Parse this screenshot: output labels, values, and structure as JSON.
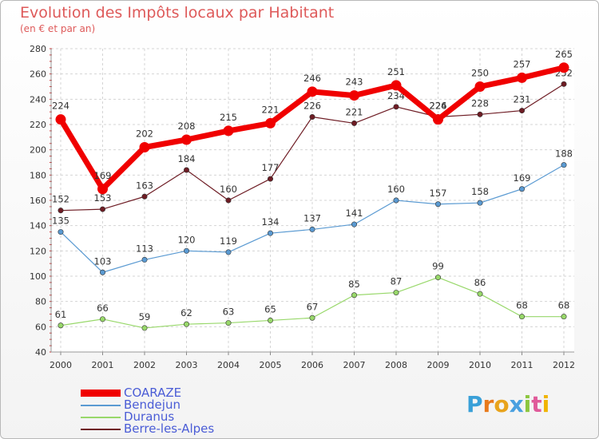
{
  "chart_data": {
    "type": "line",
    "title": "Evolution des Impôts locaux par Habitant",
    "subtitle": "(en € et par an)",
    "xlabel": "",
    "ylabel": "",
    "ylim": [
      40,
      280
    ],
    "yticks": [
      40,
      60,
      80,
      100,
      120,
      140,
      160,
      180,
      200,
      220,
      240,
      260,
      280
    ],
    "categories": [
      "2000",
      "2001",
      "2002",
      "2003",
      "2004",
      "2005",
      "2006",
      "2007",
      "2008",
      "2009",
      "2010",
      "2011",
      "2012"
    ],
    "series": [
      {
        "name": "Berre-les-Alpes",
        "color": "#6e1c24",
        "values": [
          152,
          153,
          163,
          184,
          160,
          177,
          226,
          221,
          234,
          226,
          228,
          231,
          252
        ]
      },
      {
        "name": "Bendejun",
        "color": "#5a9ad2",
        "values": [
          135,
          103,
          113,
          120,
          119,
          134,
          137,
          141,
          160,
          157,
          158,
          169,
          188
        ]
      },
      {
        "name": "Duranus",
        "color": "#98d86a",
        "values": [
          61,
          66,
          59,
          62,
          63,
          65,
          67,
          85,
          87,
          99,
          86,
          68,
          68
        ]
      },
      {
        "name": "COARAZE",
        "color": "#f00000",
        "values": [
          224,
          169,
          202,
          208,
          215,
          221,
          246,
          243,
          251,
          224,
          250,
          257,
          265
        ]
      }
    ],
    "grid": true,
    "legend_position": "bottom-left"
  },
  "legend": [
    {
      "label": "COARAZE",
      "color": "#f00000",
      "thick": true
    },
    {
      "label": "Bendejun",
      "color": "#5a9ad2",
      "thick": false
    },
    {
      "label": "Duranus",
      "color": "#98d86a",
      "thick": false
    },
    {
      "label": "Berre-les-Alpes",
      "color": "#6e1c24",
      "thick": false
    }
  ],
  "logo": {
    "letters": [
      "P",
      "r",
      "o",
      "x",
      "i",
      "t",
      "i"
    ]
  }
}
